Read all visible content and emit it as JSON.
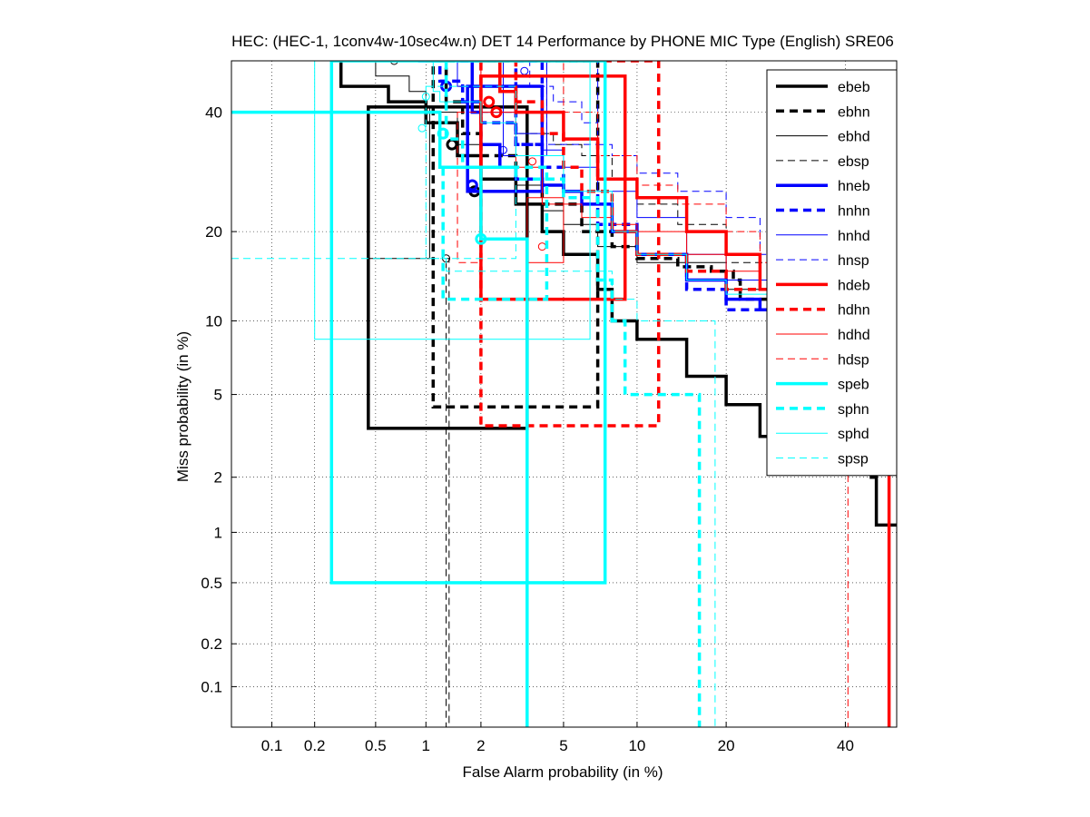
{
  "chart_data": {
    "type": "line",
    "title": "HEC: (HEC-1, 1conv4w-10sec4w.n) DET 14 Performance by PHONE MIC Type (English) SRE06",
    "xlabel": "False Alarm probability (in %)",
    "ylabel": "Miss probability (in %)",
    "xscale": "normal-deviate",
    "yscale": "normal-deviate",
    "xlim": [
      0.05,
      50
    ],
    "ylim": [
      0.05,
      50
    ],
    "x_ticks": [
      0.1,
      0.2,
      0.5,
      1,
      2,
      5,
      10,
      20,
      40
    ],
    "x_tick_labels": [
      "0.1",
      "0.2",
      "0.5",
      "1",
      "2",
      "5",
      "10",
      "20",
      "40"
    ],
    "y_ticks": [
      0.1,
      0.2,
      0.5,
      1,
      2,
      5,
      10,
      20,
      40
    ],
    "y_tick_labels": [
      "0.1",
      "0.2",
      "0.5",
      "1",
      "2",
      "5",
      "10",
      "20",
      "40"
    ],
    "grid": true,
    "legend_position": "top-right",
    "series": [
      {
        "name": "ebeb",
        "color": "#000000",
        "style": "solid",
        "width": 3.5,
        "points": [
          [
            0.3,
            50
          ],
          [
            0.3,
            45
          ],
          [
            0.5,
            45
          ],
          [
            0.6,
            42
          ],
          [
            1.0,
            38
          ],
          [
            1.5,
            32
          ],
          [
            2.0,
            28
          ],
          [
            3.0,
            24
          ],
          [
            4.0,
            20
          ],
          [
            5.0,
            17
          ],
          [
            7.0,
            13
          ],
          [
            8.0,
            10
          ],
          [
            10.0,
            8.5
          ],
          [
            15.0,
            6.0
          ],
          [
            20.0,
            4.5
          ],
          [
            25.0,
            3.2
          ],
          [
            35.0,
            2.5
          ],
          [
            45.0,
            2.0
          ],
          [
            46.0,
            1.1
          ],
          [
            50.0,
            1.1
          ]
        ],
        "box": {
          "x": [
            0.45,
            3.4
          ],
          "y": [
            3.5,
            41
          ]
        },
        "min_dcf": [
          1.85,
          26
        ]
      },
      {
        "name": "ebhn",
        "color": "#000000",
        "style": "dashed",
        "width": 3.5,
        "points": [
          [
            1.0,
            50
          ],
          [
            1.3,
            42
          ],
          [
            1.6,
            36
          ],
          [
            2.0,
            32
          ],
          [
            3.0,
            28
          ],
          [
            4.0,
            24
          ],
          [
            6.0,
            20
          ],
          [
            8.0,
            18
          ],
          [
            10.0,
            16.5
          ],
          [
            14.0,
            15.5
          ],
          [
            18.0,
            15
          ],
          [
            21.0,
            14
          ],
          [
            22.0,
            12
          ],
          [
            35.0,
            12
          ],
          [
            40.0,
            11
          ],
          [
            50.0,
            10
          ]
        ],
        "box": {
          "x": [
            1.1,
            7.0
          ],
          "y": [
            4.4,
            50
          ]
        },
        "min_dcf": [
          1.4,
          34
        ]
      },
      {
        "name": "ebhd",
        "color": "#000000",
        "style": "solid",
        "width": 1,
        "points": [
          [
            0.35,
            50
          ],
          [
            0.5,
            47
          ],
          [
            0.8,
            44
          ],
          [
            1.0,
            40
          ],
          [
            1.5,
            34
          ],
          [
            2.0,
            30
          ],
          [
            3.0,
            27
          ],
          [
            4.0,
            23
          ],
          [
            5.0,
            21
          ],
          [
            7.0,
            18
          ],
          [
            10.0,
            16
          ],
          [
            20.0,
            13
          ],
          [
            40.0,
            10
          ],
          [
            50.0,
            9
          ]
        ],
        "box": {
          "x": [
            0.45,
            1.05
          ],
          "y": [
            16.5,
            41
          ]
        },
        "min_dcf": [
          0.65,
          50
        ]
      },
      {
        "name": "ebsp",
        "color": "#000000",
        "style": "dashed",
        "width": 1,
        "points": [
          [
            1.0,
            50
          ],
          [
            1.5,
            45
          ],
          [
            2.0,
            40
          ],
          [
            3.0,
            36
          ],
          [
            4.5,
            34
          ],
          [
            6.0,
            32
          ],
          [
            8.0,
            28
          ],
          [
            10.0,
            24
          ],
          [
            14.0,
            21
          ],
          [
            20.0,
            16
          ],
          [
            30.0,
            14
          ],
          [
            50.0,
            12
          ]
        ],
        "box": {
          "x": [
            1.3,
            1.35
          ],
          "y": [
            0.05,
            16.5
          ]
        },
        "min_dcf": [
          1.3,
          16.5
        ]
      },
      {
        "name": "hneb",
        "color": "#0000ff",
        "style": "solid",
        "width": 3.5,
        "points": [
          [
            1.5,
            50
          ],
          [
            1.8,
            40
          ],
          [
            2.0,
            34
          ],
          [
            2.5,
            30
          ],
          [
            3.0,
            28
          ],
          [
            4.0,
            27
          ],
          [
            5.0,
            26
          ],
          [
            6.0,
            24
          ],
          [
            8.0,
            20
          ],
          [
            10.0,
            17
          ],
          [
            15.0,
            14
          ],
          [
            20.0,
            12
          ],
          [
            25.0,
            11
          ],
          [
            35.0,
            10
          ],
          [
            50.0,
            9
          ]
        ],
        "box": {
          "x": [
            1.7,
            4.0
          ],
          "y": [
            26,
            45
          ]
        },
        "min_dcf": [
          1.8,
          27
        ]
      },
      {
        "name": "hnhn",
        "color": "#0000ff",
        "style": "dashed",
        "width": 3.5,
        "points": [
          [
            0.9,
            50
          ],
          [
            1.2,
            46
          ],
          [
            1.6,
            42
          ],
          [
            2.0,
            38
          ],
          [
            3.0,
            34
          ],
          [
            4.0,
            30
          ],
          [
            5.0,
            26
          ],
          [
            7.0,
            21
          ],
          [
            10.0,
            17
          ],
          [
            15.0,
            13
          ],
          [
            20.0,
            11
          ],
          [
            30.0,
            8
          ],
          [
            40.0,
            5
          ],
          [
            50.0,
            2.5
          ]
        ],
        "box": {
          "x": [
            3.0,
            4.0
          ],
          "y": [
            34,
            50
          ]
        },
        "min_dcf": [
          1.3,
          45
        ]
      },
      {
        "name": "hnhd",
        "color": "#0000ff",
        "style": "solid",
        "width": 1,
        "points": [
          [
            1.0,
            50
          ],
          [
            1.5,
            45
          ],
          [
            2.0,
            40
          ],
          [
            3.0,
            36
          ],
          [
            4.0,
            33
          ],
          [
            5.0,
            30
          ],
          [
            7.0,
            26
          ],
          [
            10.0,
            22
          ],
          [
            15.0,
            17
          ],
          [
            20.0,
            14
          ],
          [
            30.0,
            11
          ],
          [
            45.0,
            9
          ],
          [
            50.0,
            8
          ]
        ],
        "box": {
          "x": [
            2.6,
            4.2
          ],
          "y": [
            32,
            50
          ]
        },
        "min_dcf": [
          2.6,
          33
        ]
      },
      {
        "name": "hnsp",
        "color": "#0000ff",
        "style": "dashed",
        "width": 1,
        "points": [
          [
            3.0,
            50
          ],
          [
            3.5,
            45
          ],
          [
            4.5,
            42
          ],
          [
            6.0,
            38
          ],
          [
            7.0,
            34
          ],
          [
            8.0,
            32
          ],
          [
            10.0,
            29
          ],
          [
            14.0,
            26
          ],
          [
            20.0,
            22
          ],
          [
            25.0,
            17
          ],
          [
            35.0,
            12
          ],
          [
            50.0,
            10
          ]
        ],
        "box": {
          "x": [
            4.2,
            7.0
          ],
          "y": [
            34,
            50
          ]
        },
        "min_dcf": [
          3.3,
          48
        ]
      },
      {
        "name": "hdeb",
        "color": "#ff0000",
        "style": "solid",
        "width": 3.5,
        "points": [
          [
            2.0,
            50
          ],
          [
            2.5,
            44
          ],
          [
            3.0,
            40
          ],
          [
            5.0,
            35
          ],
          [
            7.0,
            28
          ],
          [
            10.0,
            25
          ],
          [
            15.0,
            20
          ],
          [
            20.0,
            17
          ],
          [
            25.0,
            13
          ],
          [
            30.0,
            9
          ],
          [
            35.0,
            7
          ],
          [
            45.0,
            5.5
          ],
          [
            48.0,
            5
          ],
          [
            48.5,
            0.05
          ]
        ],
        "box": {
          "x": [
            2.0,
            9.0
          ],
          "y": [
            12,
            47
          ]
        },
        "min_dcf": [
          2.2,
          42
        ]
      },
      {
        "name": "hdhn",
        "color": "#ff0000",
        "style": "dashed",
        "width": 3.5,
        "points": [
          [
            2.5,
            50
          ],
          [
            3.0,
            42
          ],
          [
            4.0,
            36
          ],
          [
            5.0,
            30
          ],
          [
            6.0,
            26
          ],
          [
            8.0,
            20
          ],
          [
            10.0,
            17
          ],
          [
            15.0,
            15
          ],
          [
            20.0,
            13
          ],
          [
            30.0,
            9
          ],
          [
            50.0,
            5
          ]
        ],
        "box": {
          "x": [
            2.0,
            12.0
          ],
          "y": [
            3.6,
            50
          ]
        },
        "min_dcf": [
          2.4,
          40
        ]
      },
      {
        "name": "hdhd",
        "color": "#ff0000",
        "style": "solid",
        "width": 1,
        "points": [
          [
            1.3,
            50
          ],
          [
            2.0,
            40
          ],
          [
            3.0,
            30
          ],
          [
            4.0,
            24
          ],
          [
            6.0,
            22
          ],
          [
            8.0,
            21
          ],
          [
            10.0,
            20
          ],
          [
            15.0,
            17
          ],
          [
            20.0,
            15
          ],
          [
            25.0,
            13
          ],
          [
            35.0,
            11
          ],
          [
            50.0,
            9
          ]
        ],
        "box": {
          "x": [
            3.4,
            5.0
          ],
          "y": [
            16,
            25
          ]
        },
        "min_dcf": [
          4.0,
          18
        ]
      },
      {
        "name": "hdsp",
        "color": "#ff0000",
        "style": "dashed",
        "width": 1,
        "points": [
          [
            4.0,
            50
          ],
          [
            5.0,
            40
          ],
          [
            7.0,
            32
          ],
          [
            10.0,
            27
          ],
          [
            14.0,
            24
          ],
          [
            20.0,
            20
          ],
          [
            25.0,
            16
          ],
          [
            30.0,
            14
          ],
          [
            40.0,
            12
          ],
          [
            40.5,
            0.05
          ]
        ],
        "box": {
          "x": [
            1.5,
            2.0
          ],
          "y": [
            16,
            40
          ]
        },
        "min_dcf": [
          3.6,
          31
        ]
      },
      {
        "name": "speb",
        "color": "#00ffff",
        "style": "solid",
        "width": 3.5,
        "points": [
          [
            0.05,
            40
          ],
          [
            1.2,
            40
          ],
          [
            1.2,
            30
          ],
          [
            2.0,
            30
          ],
          [
            2.0,
            19
          ],
          [
            3.4,
            19
          ],
          [
            3.4,
            0.05
          ]
        ],
        "box": {
          "x": [
            0.26,
            7.5
          ],
          "y": [
            0.5,
            50
          ]
        },
        "min_dcf": [
          2.0,
          19
        ]
      },
      {
        "name": "sphn",
        "color": "#00ffff",
        "style": "dashed",
        "width": 3.5,
        "points": [
          [
            1.1,
            50
          ],
          [
            1.3,
            35
          ],
          [
            1.6,
            30
          ],
          [
            3.0,
            28
          ],
          [
            5.0,
            25
          ],
          [
            7.0,
            14
          ],
          [
            8.0,
            10
          ],
          [
            9.0,
            10
          ],
          [
            9.0,
            5
          ],
          [
            16.0,
            5
          ],
          [
            16.5,
            0.05
          ]
        ],
        "box": {
          "x": [
            1.25,
            4.2
          ],
          "y": [
            12,
            30
          ]
        },
        "min_dcf": [
          1.25,
          36
        ]
      },
      {
        "name": "sphd",
        "color": "#00ffff",
        "style": "solid",
        "width": 1,
        "points": [
          [
            0.05,
            50
          ],
          [
            1.0,
            50
          ],
          [
            1.1,
            44
          ],
          [
            1.2,
            42
          ],
          [
            2.0,
            38
          ],
          [
            3.0,
            32
          ],
          [
            5.0,
            26
          ],
          [
            8.0,
            20
          ],
          [
            10.0,
            17
          ],
          [
            15.0,
            14
          ],
          [
            20.0,
            12.5
          ],
          [
            50.0,
            12.5
          ]
        ],
        "box": {
          "x": [
            0.2,
            6.5
          ],
          "y": [
            8.5,
            50
          ]
        },
        "min_dcf": [
          0.95,
          37
        ]
      },
      {
        "name": "spsp",
        "color": "#00ffff",
        "style": "dashed",
        "width": 1,
        "points": [
          [
            0.05,
            16.5
          ],
          [
            1.3,
            16.5
          ],
          [
            1.3,
            15
          ],
          [
            2.0,
            15
          ],
          [
            4.0,
            15
          ],
          [
            8.0,
            12
          ],
          [
            10.0,
            10
          ],
          [
            18.0,
            10
          ],
          [
            18.5,
            0.05
          ]
        ],
        "box": {
          "x": [
            1.0,
            3.0
          ],
          "y": [
            16.5,
            45
          ]
        },
        "min_dcf": [
          1.0,
          43
        ]
      }
    ]
  }
}
